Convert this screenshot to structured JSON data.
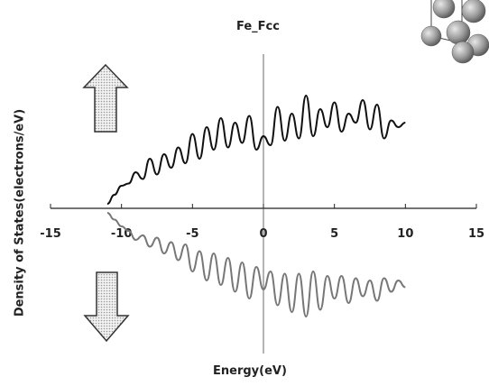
{
  "chart_data": {
    "type": "line",
    "title": "Fe_Fcc",
    "xlabel": "Energy(eV)",
    "ylabel": "Density of States(electrons/eV)",
    "xlim": [
      -15,
      15
    ],
    "xticks": [
      -15,
      -10,
      -5,
      0,
      5,
      10,
      15
    ],
    "xtick_labels": [
      "-15",
      "-10",
      "-5",
      "0",
      "5",
      "10",
      "15"
    ],
    "grid": false,
    "legend": "none",
    "series": [
      {
        "color": "#111111",
        "x": [
          -11.0,
          -10.5,
          -10.0,
          -9.5,
          -9.0,
          -8.5,
          -8.0,
          -7.5,
          -7.0,
          -6.5,
          -6.0,
          -5.5,
          -5.0,
          -4.5,
          -4.0,
          -3.5,
          -3.0,
          -2.5,
          -2.0,
          -1.5,
          -1.0,
          -0.5,
          0.0,
          0.5,
          1.0,
          1.5,
          2.0,
          2.5,
          3.0,
          3.5,
          4.0,
          4.5,
          5.0,
          5.5,
          6.0,
          6.5,
          7.0,
          7.5,
          8.0,
          8.5,
          9.0,
          9.5,
          10.0
        ],
        "y": [
          0.2,
          0.6,
          1.0,
          1.1,
          1.6,
          1.3,
          2.2,
          1.5,
          2.4,
          1.8,
          2.7,
          2.0,
          3.3,
          2.2,
          3.6,
          2.6,
          4.0,
          2.7,
          3.8,
          2.9,
          4.1,
          2.6,
          3.2,
          2.8,
          4.5,
          3.0,
          4.2,
          3.1,
          5.0,
          3.2,
          4.4,
          3.6,
          4.7,
          3.4,
          4.2,
          3.8,
          4.8,
          3.5,
          4.6,
          3.1,
          3.9,
          3.6,
          3.8
        ]
      },
      {
        "color": "#777777",
        "x": [
          -11.0,
          -10.5,
          -10.0,
          -9.5,
          -9.0,
          -8.5,
          -8.0,
          -7.5,
          -7.0,
          -6.5,
          -6.0,
          -5.5,
          -5.0,
          -4.5,
          -4.0,
          -3.5,
          -3.0,
          -2.5,
          -2.0,
          -1.5,
          -1.0,
          -0.5,
          0.0,
          0.5,
          1.0,
          1.5,
          2.0,
          2.5,
          3.0,
          3.5,
          4.0,
          4.5,
          5.0,
          5.5,
          6.0,
          6.5,
          7.0,
          7.5,
          8.0,
          8.5,
          9.0,
          9.5,
          10.0
        ],
        "y": [
          -0.2,
          -0.5,
          -0.8,
          -1.0,
          -1.4,
          -1.2,
          -1.7,
          -1.3,
          -2.0,
          -1.5,
          -2.3,
          -1.6,
          -2.8,
          -1.9,
          -3.2,
          -2.0,
          -3.4,
          -2.2,
          -3.7,
          -2.4,
          -4.0,
          -2.6,
          -3.6,
          -2.8,
          -4.3,
          -2.9,
          -4.6,
          -2.9,
          -4.8,
          -2.8,
          -4.5,
          -3.0,
          -4.0,
          -3.0,
          -4.2,
          -3.1,
          -3.9,
          -3.2,
          -4.1,
          -3.1,
          -3.7,
          -3.2,
          -3.5
        ]
      }
    ]
  },
  "decorations": {
    "up_arrow": "spin-up-arrow-icon",
    "down_arrow": "spin-down-arrow-icon",
    "crystal": "fcc-atom-cluster-icon"
  }
}
